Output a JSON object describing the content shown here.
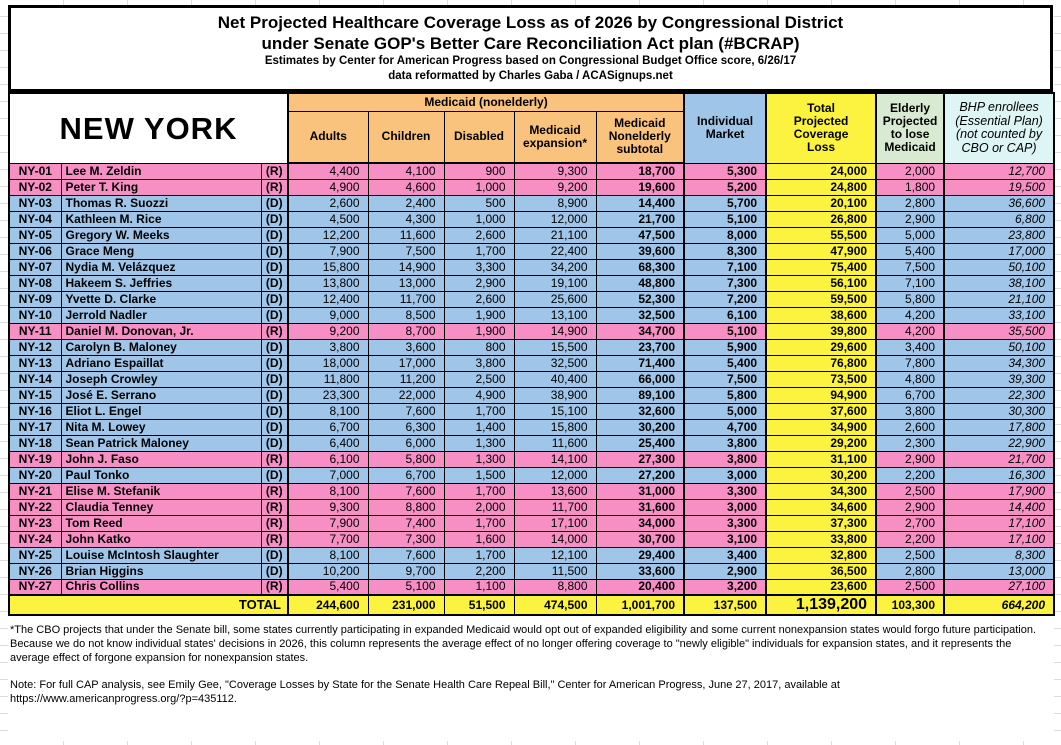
{
  "title": {
    "line1": "Net Projected Healthcare Coverage Loss as of 2026 by Congressional District",
    "line2": "under Senate GOP's Better Care Reconciliation Act plan (#BCRAP)",
    "line3": "Estimates by Center for American Progress based on Congressional Budget Office score, 6/26/17",
    "line4": "data reformatted by Charles Gaba / ACASignups.net"
  },
  "table": {
    "state_label": "NEW YORK",
    "group_header": "Medicaid (nonelderly)",
    "headers": {
      "adults": "Adults",
      "children": "Children",
      "disabled": "Disabled",
      "expansion": "Medicaid\nexpansion*",
      "subtotal": "Medicaid\nNonelderly\nsubtotal",
      "individual": "Individual\nMarket",
      "total": "Total\nProjected\nCoverage\nLoss",
      "elderly": "Elderly\nProjected\nto lose\nMedicaid",
      "bhp": "BHP enrollees\n(Essential Plan)\n(not counted by\nCBO or CAP)"
    },
    "rows": [
      {
        "district": "NY-01",
        "name": "Lee M. Zeldin",
        "party": "(R)",
        "adults": "4,400",
        "children": "4,100",
        "disabled": "900",
        "expansion": "9,300",
        "subtotal": "18,700",
        "individual": "5,300",
        "total": "24,000",
        "elderly": "2,000",
        "bhp": "12,700"
      },
      {
        "district": "NY-02",
        "name": "Peter T. King",
        "party": "(R)",
        "adults": "4,900",
        "children": "4,600",
        "disabled": "1,000",
        "expansion": "9,200",
        "subtotal": "19,600",
        "individual": "5,200",
        "total": "24,800",
        "elderly": "1,800",
        "bhp": "19,500"
      },
      {
        "district": "NY-03",
        "name": "Thomas R. Suozzi",
        "party": "(D)",
        "adults": "2,600",
        "children": "2,400",
        "disabled": "500",
        "expansion": "8,900",
        "subtotal": "14,400",
        "individual": "5,700",
        "total": "20,100",
        "elderly": "2,800",
        "bhp": "36,600"
      },
      {
        "district": "NY-04",
        "name": "Kathleen M. Rice",
        "party": "(D)",
        "adults": "4,500",
        "children": "4,300",
        "disabled": "1,000",
        "expansion": "12,000",
        "subtotal": "21,700",
        "individual": "5,100",
        "total": "26,800",
        "elderly": "2,900",
        "bhp": "6,800"
      },
      {
        "district": "NY-05",
        "name": "Gregory W. Meeks",
        "party": "(D)",
        "adults": "12,200",
        "children": "11,600",
        "disabled": "2,600",
        "expansion": "21,100",
        "subtotal": "47,500",
        "individual": "8,000",
        "total": "55,500",
        "elderly": "5,000",
        "bhp": "23,800"
      },
      {
        "district": "NY-06",
        "name": "Grace Meng",
        "party": "(D)",
        "adults": "7,900",
        "children": "7,500",
        "disabled": "1,700",
        "expansion": "22,400",
        "subtotal": "39,600",
        "individual": "8,300",
        "total": "47,900",
        "elderly": "5,400",
        "bhp": "17,000"
      },
      {
        "district": "NY-07",
        "name": "Nydia M. Velázquez",
        "party": "(D)",
        "adults": "15,800",
        "children": "14,900",
        "disabled": "3,300",
        "expansion": "34,200",
        "subtotal": "68,300",
        "individual": "7,100",
        "total": "75,400",
        "elderly": "7,500",
        "bhp": "50,100"
      },
      {
        "district": "NY-08",
        "name": "Hakeem S. Jeffries",
        "party": "(D)",
        "adults": "13,800",
        "children": "13,000",
        "disabled": "2,900",
        "expansion": "19,100",
        "subtotal": "48,800",
        "individual": "7,300",
        "total": "56,100",
        "elderly": "7,100",
        "bhp": "38,100"
      },
      {
        "district": "NY-09",
        "name": "Yvette D. Clarke",
        "party": "(D)",
        "adults": "12,400",
        "children": "11,700",
        "disabled": "2,600",
        "expansion": "25,600",
        "subtotal": "52,300",
        "individual": "7,200",
        "total": "59,500",
        "elderly": "5,800",
        "bhp": "21,100"
      },
      {
        "district": "NY-10",
        "name": "Jerrold Nadler",
        "party": "(D)",
        "adults": "9,000",
        "children": "8,500",
        "disabled": "1,900",
        "expansion": "13,100",
        "subtotal": "32,500",
        "individual": "6,100",
        "total": "38,600",
        "elderly": "4,200",
        "bhp": "33,100"
      },
      {
        "district": "NY-11",
        "name": "Daniel M. Donovan, Jr.",
        "party": "(R)",
        "adults": "9,200",
        "children": "8,700",
        "disabled": "1,900",
        "expansion": "14,900",
        "subtotal": "34,700",
        "individual": "5,100",
        "total": "39,800",
        "elderly": "4,200",
        "bhp": "35,500"
      },
      {
        "district": "NY-12",
        "name": "Carolyn B. Maloney",
        "party": "(D)",
        "adults": "3,800",
        "children": "3,600",
        "disabled": "800",
        "expansion": "15,500",
        "subtotal": "23,700",
        "individual": "5,900",
        "total": "29,600",
        "elderly": "3,400",
        "bhp": "50,100"
      },
      {
        "district": "NY-13",
        "name": "Adriano Espaillat",
        "party": "(D)",
        "adults": "18,000",
        "children": "17,000",
        "disabled": "3,800",
        "expansion": "32,500",
        "subtotal": "71,400",
        "individual": "5,400",
        "total": "76,800",
        "elderly": "7,800",
        "bhp": "34,300"
      },
      {
        "district": "NY-14",
        "name": "Joseph Crowley",
        "party": "(D)",
        "adults": "11,800",
        "children": "11,200",
        "disabled": "2,500",
        "expansion": "40,400",
        "subtotal": "66,000",
        "individual": "7,500",
        "total": "73,500",
        "elderly": "4,800",
        "bhp": "39,300"
      },
      {
        "district": "NY-15",
        "name": "José E. Serrano",
        "party": "(D)",
        "adults": "23,300",
        "children": "22,000",
        "disabled": "4,900",
        "expansion": "38,900",
        "subtotal": "89,100",
        "individual": "5,800",
        "total": "94,900",
        "elderly": "6,700",
        "bhp": "22,300"
      },
      {
        "district": "NY-16",
        "name": "Eliot L. Engel",
        "party": "(D)",
        "adults": "8,100",
        "children": "7,600",
        "disabled": "1,700",
        "expansion": "15,100",
        "subtotal": "32,600",
        "individual": "5,000",
        "total": "37,600",
        "elderly": "3,800",
        "bhp": "30,300"
      },
      {
        "district": "NY-17",
        "name": "Nita M. Lowey",
        "party": "(D)",
        "adults": "6,700",
        "children": "6,300",
        "disabled": "1,400",
        "expansion": "15,800",
        "subtotal": "30,200",
        "individual": "4,700",
        "total": "34,900",
        "elderly": "2,600",
        "bhp": "17,800"
      },
      {
        "district": "NY-18",
        "name": "Sean Patrick Maloney",
        "party": "(D)",
        "adults": "6,400",
        "children": "6,000",
        "disabled": "1,300",
        "expansion": "11,600",
        "subtotal": "25,400",
        "individual": "3,800",
        "total": "29,200",
        "elderly": "2,300",
        "bhp": "22,900"
      },
      {
        "district": "NY-19",
        "name": "John J. Faso",
        "party": "(R)",
        "adults": "6,100",
        "children": "5,800",
        "disabled": "1,300",
        "expansion": "14,100",
        "subtotal": "27,300",
        "individual": "3,800",
        "total": "31,100",
        "elderly": "2,900",
        "bhp": "21,700"
      },
      {
        "district": "NY-20",
        "name": "Paul Tonko",
        "party": "(D)",
        "adults": "7,000",
        "children": "6,700",
        "disabled": "1,500",
        "expansion": "12,000",
        "subtotal": "27,200",
        "individual": "3,000",
        "total": "30,200",
        "elderly": "2,200",
        "bhp": "16,300"
      },
      {
        "district": "NY-21",
        "name": "Elise M. Stefanik",
        "party": "(R)",
        "adults": "8,100",
        "children": "7,600",
        "disabled": "1,700",
        "expansion": "13,600",
        "subtotal": "31,000",
        "individual": "3,300",
        "total": "34,300",
        "elderly": "2,500",
        "bhp": "17,900"
      },
      {
        "district": "NY-22",
        "name": "Claudia Tenney",
        "party": "(R)",
        "adults": "9,300",
        "children": "8,800",
        "disabled": "2,000",
        "expansion": "11,700",
        "subtotal": "31,600",
        "individual": "3,000",
        "total": "34,600",
        "elderly": "2,900",
        "bhp": "14,400"
      },
      {
        "district": "NY-23",
        "name": "Tom Reed",
        "party": "(R)",
        "adults": "7,900",
        "children": "7,400",
        "disabled": "1,700",
        "expansion": "17,100",
        "subtotal": "34,000",
        "individual": "3,300",
        "total": "37,300",
        "elderly": "2,700",
        "bhp": "17,100"
      },
      {
        "district": "NY-24",
        "name": "John Katko",
        "party": "(R)",
        "adults": "7,700",
        "children": "7,300",
        "disabled": "1,600",
        "expansion": "14,000",
        "subtotal": "30,700",
        "individual": "3,100",
        "total": "33,800",
        "elderly": "2,200",
        "bhp": "17,100"
      },
      {
        "district": "NY-25",
        "name": "Louise McIntosh Slaughter",
        "party": "(D)",
        "adults": "8,100",
        "children": "7,600",
        "disabled": "1,700",
        "expansion": "12,100",
        "subtotal": "29,400",
        "individual": "3,400",
        "total": "32,800",
        "elderly": "2,500",
        "bhp": "8,300"
      },
      {
        "district": "NY-26",
        "name": "Brian Higgins",
        "party": "(D)",
        "adults": "10,200",
        "children": "9,700",
        "disabled": "2,200",
        "expansion": "11,500",
        "subtotal": "33,600",
        "individual": "2,900",
        "total": "36,500",
        "elderly": "2,800",
        "bhp": "13,000"
      },
      {
        "district": "NY-27",
        "name": "Chris Collins",
        "party": "(R)",
        "adults": "5,400",
        "children": "5,100",
        "disabled": "1,100",
        "expansion": "8,800",
        "subtotal": "20,400",
        "individual": "3,200",
        "total": "23,600",
        "elderly": "2,500",
        "bhp": "27,100"
      }
    ],
    "total_row": {
      "label": "TOTAL",
      "adults": "244,600",
      "children": "231,000",
      "disabled": "51,500",
      "expansion": "474,500",
      "subtotal": "1,001,700",
      "individual": "137,500",
      "total": "1,139,200",
      "elderly": "103,300",
      "bhp": "664,200"
    }
  },
  "footnotes": {
    "asterisk": "*The CBO projects that under the Senate bill, some states currently participating in expanded Medicaid would opt out of expanded eligibility and some current nonexpansion states would forgo future participation. Because we do not know individual states' decisions in 2026, this column represents the average effect of no longer offering coverage to \"newly eligible\" individuals for expansion states, and it represents the average effect of forgone expansion for nonexpansion states.",
    "note": "Note: For full CAP analysis, see Emily Gee, \"Coverage Losses by State for the Senate Health Care Repeal Bill,\" Center for American Progress, June 27, 2017, available at",
    "note_url": "https://www.americanprogress.org/?p=435112."
  },
  "colors": {
    "republican_row": "#F78FC5",
    "democrat_row": "#9FC5E8",
    "medicaid_group_header": "#F9C27D",
    "individual_market_header": "#9FC5E8",
    "total_column": "#FCF340",
    "elderly_header": "#D9EAD3",
    "bhp_header": "#DDF5F4",
    "grid_line": "#DCDCDC"
  }
}
